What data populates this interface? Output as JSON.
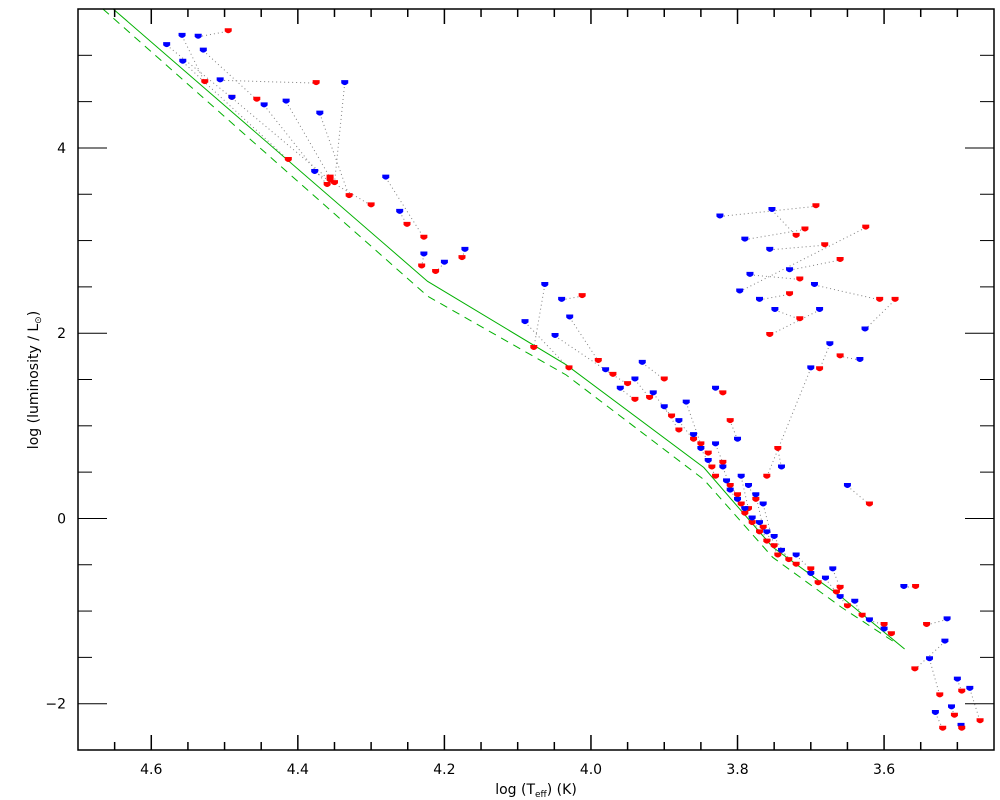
{
  "chart_data": {
    "type": "scatter",
    "title": "",
    "xlabel": "log (T",
    "xlabel_sub": "eff",
    "xlabel_tail": ") (K)",
    "ylabel": "log (luminosity / L",
    "ylabel_sub": "⊙",
    "ylabel_tail": ")",
    "xlim": [
      4.7,
      3.45
    ],
    "ylim": [
      -2.5,
      5.5
    ],
    "x_major_ticks": [
      4.6,
      4.4,
      4.2,
      4.0,
      3.8,
      3.6
    ],
    "x_tick_labels": [
      "4.6",
      "4.4",
      "4.2",
      "4.0",
      "3.8",
      "3.6"
    ],
    "x_minor_step": 0.05,
    "y_major_ticks": [
      -2,
      0,
      2,
      4
    ],
    "y_tick_labels": [
      "−2",
      "0",
      "2",
      "4"
    ],
    "y_minor_step": 0.5,
    "grid": false,
    "colors": {
      "blue": "#0000ff",
      "red": "#ff0000",
      "green": "#00b000",
      "connector": "#808080",
      "axis": "#000000"
    },
    "reference_lines": [
      {
        "name": "main-sequence-solid",
        "style": "solid",
        "color": "#00b000",
        "points": [
          [
            4.652,
            5.53
          ],
          [
            4.223,
            2.56
          ],
          [
            4.034,
            1.66
          ],
          [
            3.846,
            0.55
          ],
          [
            3.752,
            -0.31
          ],
          [
            3.658,
            -0.85
          ],
          [
            3.572,
            -1.41
          ]
        ]
      },
      {
        "name": "main-sequence-dashed",
        "style": "dashed",
        "color": "#00b000",
        "points": [
          [
            4.666,
            5.53
          ],
          [
            4.223,
            2.4
          ],
          [
            4.034,
            1.55
          ],
          [
            3.846,
            0.42
          ],
          [
            3.752,
            -0.42
          ],
          [
            3.658,
            -0.96
          ],
          [
            3.585,
            -1.34
          ]
        ]
      }
    ],
    "pairs": [
      {
        "blue": [
          4.558,
          5.21
        ],
        "red": [
          4.527,
          4.71
        ]
      },
      {
        "blue": [
          4.536,
          5.2
        ],
        "red": [
          4.495,
          5.26
        ]
      },
      {
        "blue": [
          4.579,
          5.11
        ],
        "red": [
          4.49,
          4.54
        ]
      },
      {
        "blue": [
          4.529,
          5.05
        ],
        "red": [
          4.456,
          4.52
        ]
      },
      {
        "blue": [
          4.557,
          4.93
        ],
        "red": [
          4.413,
          3.87
        ]
      },
      {
        "blue": [
          4.506,
          4.73
        ],
        "red": [
          4.375,
          4.7
        ]
      },
      {
        "blue": [
          4.49,
          4.54
        ],
        "red": [
          4.356,
          3.65
        ]
      },
      {
        "blue": [
          4.446,
          4.46
        ],
        "red": [
          4.36,
          3.6
        ]
      },
      {
        "blue": [
          4.416,
          4.5
        ],
        "red": [
          4.356,
          3.68
        ]
      },
      {
        "blue": [
          4.336,
          4.7
        ],
        "red": [
          4.35,
          3.62
        ]
      },
      {
        "blue": [
          4.37,
          4.37
        ],
        "red": [
          4.33,
          3.48
        ]
      },
      {
        "blue": [
          4.377,
          3.74
        ],
        "red": [
          4.3,
          3.38
        ]
      },
      {
        "blue": [
          4.28,
          3.68
        ],
        "red": [
          4.228,
          3.03
        ]
      },
      {
        "blue": [
          4.261,
          3.31
        ],
        "red": [
          4.251,
          3.17
        ]
      },
      {
        "blue": [
          4.228,
          2.85
        ],
        "red": [
          4.231,
          2.72
        ]
      },
      {
        "blue": [
          4.172,
          2.9
        ],
        "red": [
          4.176,
          2.81
        ]
      },
      {
        "blue": [
          4.2,
          2.76
        ],
        "red": [
          4.212,
          2.66
        ]
      },
      {
        "blue": [
          4.063,
          2.52
        ],
        "red": [
          4.078,
          1.84
        ]
      },
      {
        "blue": [
          4.04,
          2.36
        ],
        "red": [
          4.012,
          2.4
        ]
      },
      {
        "blue": [
          4.09,
          2.12
        ],
        "red": [
          4.03,
          1.62
        ]
      },
      {
        "blue": [
          4.029,
          2.17
        ],
        "red": [
          3.99,
          1.7
        ]
      },
      {
        "blue": [
          4.049,
          1.97
        ],
        "red": [
          3.97,
          1.55
        ]
      },
      {
        "blue": [
          3.98,
          1.6
        ],
        "red": [
          3.95,
          1.45
        ]
      },
      {
        "blue": [
          3.96,
          1.4
        ],
        "red": [
          3.94,
          1.28
        ]
      },
      {
        "blue": [
          3.94,
          1.5
        ],
        "red": [
          3.92,
          1.3
        ]
      },
      {
        "blue": [
          3.93,
          1.68
        ],
        "red": [
          3.9,
          1.5
        ]
      },
      {
        "blue": [
          3.915,
          1.35
        ],
        "red": [
          3.89,
          1.1
        ]
      },
      {
        "blue": [
          3.9,
          1.2
        ],
        "red": [
          3.88,
          0.95
        ]
      },
      {
        "blue": [
          3.88,
          1.05
        ],
        "red": [
          3.86,
          0.85
        ]
      },
      {
        "blue": [
          3.87,
          1.25
        ],
        "red": [
          3.85,
          0.8
        ]
      },
      {
        "blue": [
          3.86,
          0.9
        ],
        "red": [
          3.84,
          0.7
        ]
      },
      {
        "blue": [
          3.85,
          0.75
        ],
        "red": [
          3.835,
          0.55
        ]
      },
      {
        "blue": [
          3.84,
          0.62
        ],
        "red": [
          3.83,
          0.45
        ]
      },
      {
        "blue": [
          3.83,
          0.8
        ],
        "red": [
          3.82,
          0.6
        ]
      },
      {
        "blue": [
          3.82,
          0.55
        ],
        "red": [
          3.81,
          0.35
        ]
      },
      {
        "blue": [
          3.815,
          0.4
        ],
        "red": [
          3.8,
          0.25
        ]
      },
      {
        "blue": [
          3.81,
          0.3
        ],
        "red": [
          3.795,
          0.15
        ]
      },
      {
        "blue": [
          3.8,
          0.2
        ],
        "red": [
          3.79,
          0.05
        ]
      },
      {
        "blue": [
          3.795,
          0.45
        ],
        "red": [
          3.785,
          0.1
        ]
      },
      {
        "blue": [
          3.79,
          0.1
        ],
        "red": [
          3.78,
          -0.05
        ]
      },
      {
        "blue": [
          3.785,
          0.35
        ],
        "red": [
          3.775,
          0.2
        ]
      },
      {
        "blue": [
          3.78,
          0.0
        ],
        "red": [
          3.77,
          -0.15
        ]
      },
      {
        "blue": [
          3.775,
          0.25
        ],
        "red": [
          3.765,
          -0.1
        ]
      },
      {
        "blue": [
          3.77,
          -0.05
        ],
        "red": [
          3.76,
          -0.25
        ]
      },
      {
        "blue": [
          3.765,
          0.15
        ],
        "red": [
          3.75,
          -0.3
        ]
      },
      {
        "blue": [
          3.76,
          -0.15
        ],
        "red": [
          3.745,
          -0.4
        ]
      },
      {
        "blue": [
          3.75,
          -0.2
        ],
        "red": [
          3.73,
          -0.45
        ]
      },
      {
        "blue": [
          3.74,
          0.55
        ],
        "red": [
          3.745,
          0.75
        ]
      },
      {
        "blue": [
          3.8,
          0.85
        ],
        "red": [
          3.81,
          1.05
        ]
      },
      {
        "blue": [
          3.83,
          1.4
        ],
        "red": [
          3.82,
          1.35
        ]
      },
      {
        "blue": [
          3.74,
          -0.35
        ],
        "red": [
          3.72,
          -0.5
        ]
      },
      {
        "blue": [
          3.72,
          -0.4
        ],
        "red": [
          3.7,
          -0.55
        ]
      },
      {
        "blue": [
          3.7,
          -0.6
        ],
        "red": [
          3.69,
          -0.7
        ]
      },
      {
        "blue": [
          3.68,
          -0.65
        ],
        "red": [
          3.665,
          -0.8
        ]
      },
      {
        "blue": [
          3.67,
          -0.55
        ],
        "red": [
          3.66,
          -0.75
        ]
      },
      {
        "blue": [
          3.66,
          -0.85
        ],
        "red": [
          3.65,
          -0.95
        ]
      },
      {
        "blue": [
          3.64,
          -0.9
        ],
        "red": [
          3.63,
          -1.05
        ]
      },
      {
        "blue": [
          3.62,
          -1.1
        ],
        "red": [
          3.6,
          -1.15
        ]
      },
      {
        "blue": [
          3.6,
          -1.2
        ],
        "red": [
          3.59,
          -1.25
        ]
      },
      {
        "blue": [
          3.65,
          0.35
        ],
        "red": [
          3.62,
          0.15
        ]
      },
      {
        "blue": [
          3.573,
          -0.74
        ],
        "red": [
          3.557,
          -0.74
        ]
      },
      {
        "blue": [
          3.514,
          -1.09
        ],
        "red": [
          3.542,
          -1.15
        ]
      },
      {
        "blue": [
          3.517,
          -1.33
        ],
        "red": [
          3.558,
          -1.63
        ]
      },
      {
        "blue": [
          3.538,
          -1.52
        ],
        "red": [
          3.524,
          -1.91
        ]
      },
      {
        "blue": [
          3.5,
          -1.74
        ],
        "red": [
          3.494,
          -1.87
        ]
      },
      {
        "blue": [
          3.483,
          -1.84
        ],
        "red": [
          3.469,
          -2.19
        ]
      },
      {
        "blue": [
          3.495,
          -2.24
        ],
        "red": [
          3.494,
          -2.27
        ]
      },
      {
        "blue": [
          3.508,
          -2.04
        ],
        "red": [
          3.504,
          -2.13
        ]
      },
      {
        "blue": [
          3.53,
          -2.1
        ],
        "red": [
          3.52,
          -2.27
        ]
      },
      {
        "blue": [
          3.824,
          3.26
        ],
        "red": [
          3.693,
          3.37
        ]
      },
      {
        "blue": [
          3.753,
          3.33
        ],
        "red": [
          3.72,
          3.05
        ]
      },
      {
        "blue": [
          3.79,
          3.01
        ],
        "red": [
          3.708,
          3.12
        ]
      },
      {
        "blue": [
          3.756,
          2.9
        ],
        "red": [
          3.681,
          2.95
        ]
      },
      {
        "blue": [
          3.729,
          2.68
        ],
        "red": [
          3.66,
          2.79
        ]
      },
      {
        "blue": [
          3.783,
          2.63
        ],
        "red": [
          3.715,
          2.58
        ]
      },
      {
        "blue": [
          3.77,
          2.36
        ],
        "red": [
          3.729,
          2.42
        ]
      },
      {
        "blue": [
          3.749,
          2.25
        ],
        "red": [
          3.715,
          2.15
        ]
      },
      {
        "blue": [
          3.688,
          2.25
        ],
        "red": [
          3.756,
          1.98
        ]
      },
      {
        "blue": [
          3.797,
          2.45
        ],
        "red": [
          3.625,
          3.14
        ]
      },
      {
        "blue": [
          3.695,
          2.52
        ],
        "red": [
          3.606,
          2.36
        ]
      },
      {
        "blue": [
          3.626,
          2.04
        ],
        "red": [
          3.585,
          2.36
        ]
      },
      {
        "blue": [
          3.674,
          1.88
        ],
        "red": [
          3.688,
          1.61
        ]
      },
      {
        "blue": [
          3.633,
          1.71
        ],
        "red": [
          3.66,
          1.75
        ]
      },
      {
        "blue": [
          3.7,
          1.62
        ],
        "red": [
          3.76,
          0.45
        ]
      }
    ]
  }
}
